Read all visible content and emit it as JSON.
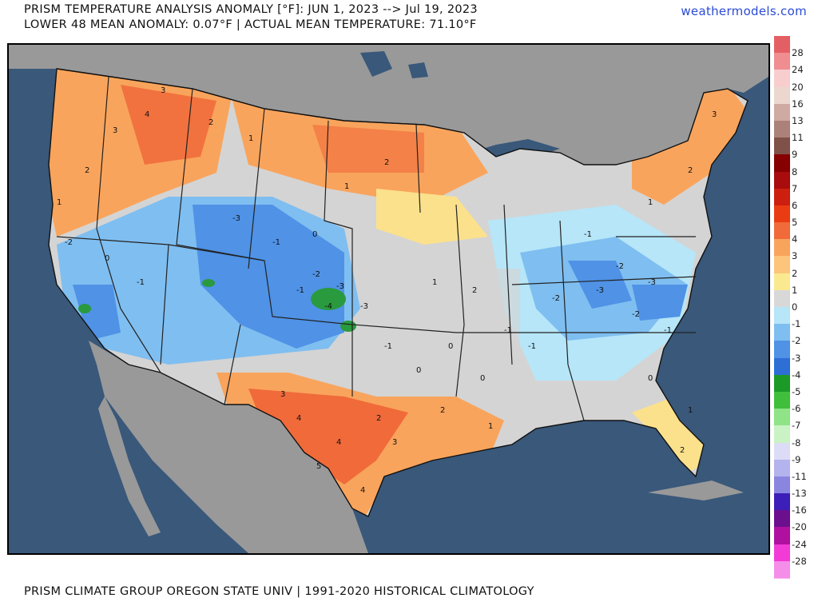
{
  "header": {
    "title_line1": "PRISM TEMPERATURE ANALYSIS ANOMALY [°F]: JUN 1, 2023 --> Jul 19, 2023",
    "title_line2": "LOWER 48 MEAN ANOMALY: 0.07°F | ACTUAL MEAN TEMPERATURE: 71.10°F",
    "brand": "weathermodels.com"
  },
  "footer": {
    "credit": "PRISM CLIMATE GROUP OREGON STATE UNIV | 1991-2020 HISTORICAL CLIMATOLOGY"
  },
  "colors": {
    "ocean": "#39587a",
    "land_outside": "#999999",
    "anom_pos5": "#f06a3a",
    "anom_pos3": "#f9a45c",
    "anom_pos1": "#fbe18c",
    "anom_zero": "#d4d4d4",
    "anom_neg1": "#b6e6f8",
    "anom_neg2": "#7fbef0",
    "anom_neg3": "#4f92e6",
    "anom_neg4": "#2a9a3e"
  },
  "legend": [
    {
      "label": "28",
      "color": "#e45f63"
    },
    {
      "label": "24",
      "color": "#ef8d90"
    },
    {
      "label": "20",
      "color": "#f7cdcd"
    },
    {
      "label": "16",
      "color": "#ecd7ce"
    },
    {
      "label": "13",
      "color": "#ceaaa2"
    },
    {
      "label": "11",
      "color": "#ab817a"
    },
    {
      "label": "9",
      "color": "#7f5149"
    },
    {
      "label": "8",
      "color": "#860000"
    },
    {
      "label": "7",
      "color": "#a80c0c"
    },
    {
      "label": "6",
      "color": "#cc1f0f"
    },
    {
      "label": "5",
      "color": "#ea3c12"
    },
    {
      "label": "4",
      "color": "#f06a3a"
    },
    {
      "label": "3",
      "color": "#f9a45c"
    },
    {
      "label": "2",
      "color": "#fcc57b"
    },
    {
      "label": "1",
      "color": "#fbe98f"
    },
    {
      "label": "0",
      "color": "#d8d8d8"
    },
    {
      "label": "-1",
      "color": "#b6e6f8"
    },
    {
      "label": "-2",
      "color": "#7fbef0"
    },
    {
      "label": "-3",
      "color": "#4f92e6"
    },
    {
      "label": "-4",
      "color": "#2d6fd5"
    },
    {
      "label": "-5",
      "color": "#1b9a27"
    },
    {
      "label": "-6",
      "color": "#3fbf3c"
    },
    {
      "label": "-7",
      "color": "#8ee486"
    },
    {
      "label": "-8",
      "color": "#c9f3c4"
    },
    {
      "label": "-9",
      "color": "#dcdcf6"
    },
    {
      "label": "-11",
      "color": "#b3b3ee"
    },
    {
      "label": "-13",
      "color": "#8a86e0"
    },
    {
      "label": "-16",
      "color": "#3c1fb8"
    },
    {
      "label": "-20",
      "color": "#6b0f8e"
    },
    {
      "label": "-24",
      "color": "#b0109f"
    },
    {
      "label": "-28",
      "color": "#f23ad6"
    },
    {
      "label": "",
      "color": "#f58ee8"
    }
  ],
  "map_labels": [
    {
      "t": "3"
    },
    {
      "t": "4"
    },
    {
      "t": "3"
    },
    {
      "t": "2"
    },
    {
      "t": "1"
    },
    {
      "t": "2"
    },
    {
      "t": "1"
    },
    {
      "t": "-2"
    },
    {
      "t": "0"
    },
    {
      "t": "-1"
    },
    {
      "t": "-3"
    },
    {
      "t": "-1"
    },
    {
      "t": "0"
    },
    {
      "t": "-1"
    },
    {
      "t": "-2"
    },
    {
      "t": "-3"
    },
    {
      "t": "-4"
    },
    {
      "t": "-3"
    },
    {
      "t": "-1"
    },
    {
      "t": "0"
    },
    {
      "t": "1"
    },
    {
      "t": "2"
    },
    {
      "t": "3"
    },
    {
      "t": "4"
    },
    {
      "t": "4"
    },
    {
      "t": "2"
    },
    {
      "t": "5"
    },
    {
      "t": "4"
    },
    {
      "t": "3"
    },
    {
      "t": "2"
    },
    {
      "t": "1"
    },
    {
      "t": "0"
    },
    {
      "t": "-1"
    },
    {
      "t": "-2"
    },
    {
      "t": "-3"
    },
    {
      "t": "-2"
    },
    {
      "t": "-1"
    },
    {
      "t": "0"
    },
    {
      "t": "1"
    },
    {
      "t": "2"
    },
    {
      "t": "3"
    },
    {
      "t": "2"
    },
    {
      "t": "1"
    },
    {
      "t": "-1"
    },
    {
      "t": "-2"
    },
    {
      "t": "-3"
    },
    {
      "t": "-1"
    },
    {
      "t": "0"
    },
    {
      "t": "1"
    },
    {
      "t": "2"
    }
  ]
}
